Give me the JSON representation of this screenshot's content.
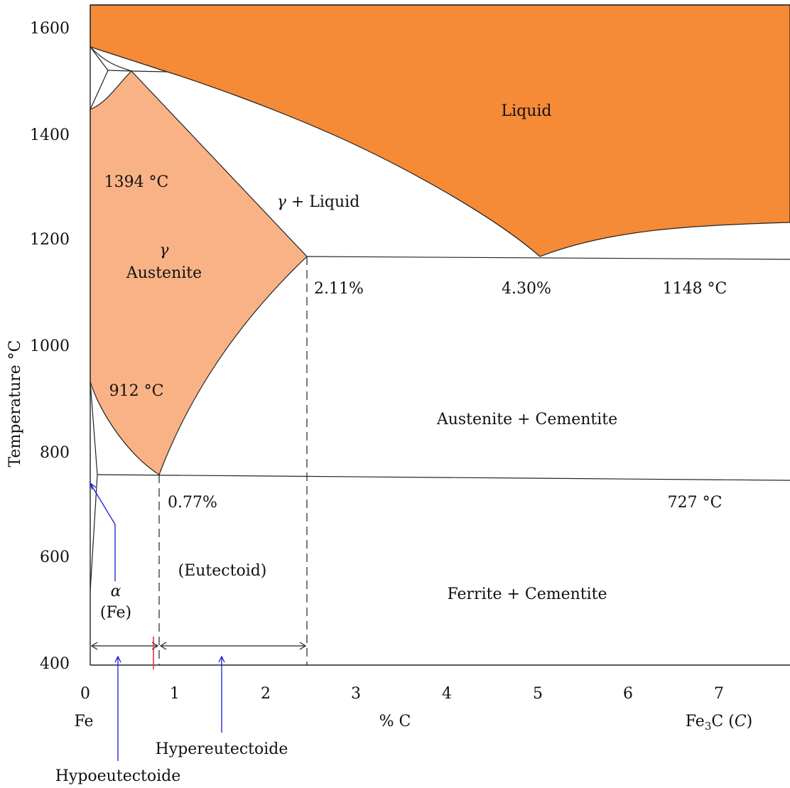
{
  "axes": {
    "y_label": "Temperature °C",
    "y_ticks": [
      "1600",
      "1400",
      "1200",
      "1000",
      "800",
      "600",
      "400"
    ],
    "x_ticks": [
      "0",
      "1",
      "2",
      "3",
      "4",
      "5",
      "6",
      "7"
    ],
    "x_label": "% C",
    "x_left_label": "Fe",
    "x_right_label_main": "Fe",
    "x_right_label_sub": "3",
    "x_right_label_tail": "C (",
    "x_right_label_italic": "C",
    "x_right_label_close": ")"
  },
  "regions": {
    "liquid": "Liquid",
    "gamma_liquid_symbol": "γ",
    "gamma_liquid_text": "+ Liquid",
    "gamma_symbol": "γ",
    "austenite": "Austenite",
    "austenite_cementite": "Austenite + Cementite",
    "ferrite_cementite": "Ferrite + Cementite",
    "alpha_symbol": "α",
    "alpha_fe": "(Fe)",
    "eutectoid": "(Eutectoid)"
  },
  "annotations": {
    "t_1394": "1394 °C",
    "t_912": "912 °C",
    "t_1148": "1148 °C",
    "t_727": "727 °C",
    "c_211": "2.11%",
    "c_430": "4.30%",
    "c_077": "0.77%",
    "hypereutectoide": "Hypereutectoide",
    "hypoeutectoide": "Hypoeutectoide"
  },
  "colors": {
    "liquid": "#f58a37",
    "austenite": "#f9b286",
    "line": "#222222",
    "arrow_blue": "#1a1adc",
    "marker_red": "#e8352a"
  }
}
